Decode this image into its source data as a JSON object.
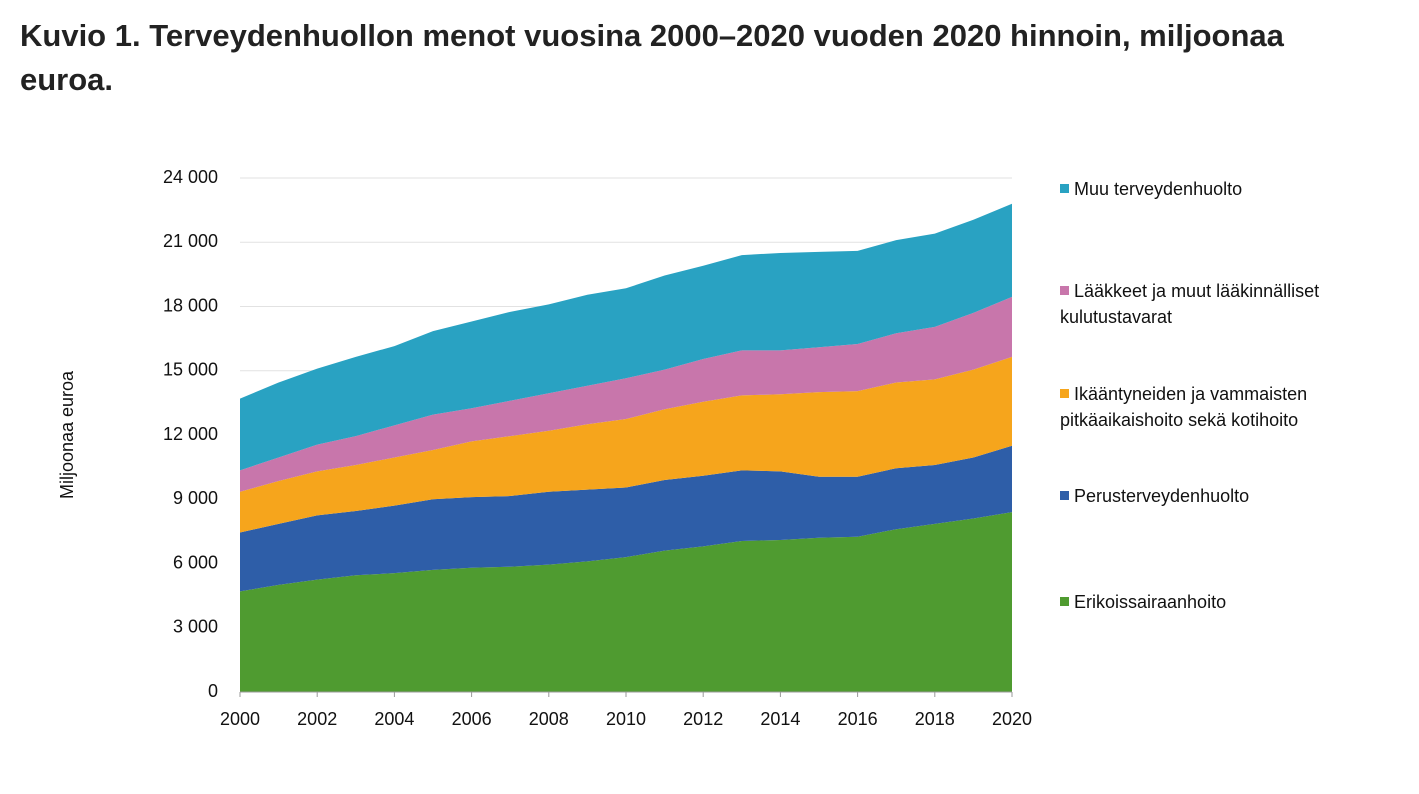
{
  "chart_data": {
    "type": "stacked_area",
    "title": "Kuvio 1. Terveydenhuollon menot vuosina 2000–2020 vuoden 2020 hinnoin, miljoonaa euroa.",
    "y_label": "Miljoonaa euroa",
    "x": [
      2000,
      2001,
      2002,
      2003,
      2004,
      2005,
      2006,
      2007,
      2008,
      2009,
      2010,
      2011,
      2012,
      2013,
      2014,
      2015,
      2016,
      2017,
      2018,
      2019,
      2020
    ],
    "xlim": [
      2000,
      2020
    ],
    "xticks": [
      2000,
      2002,
      2004,
      2006,
      2008,
      2010,
      2012,
      2014,
      2016,
      2018,
      2020
    ],
    "ylim": [
      0,
      24000
    ],
    "yticks": [
      0,
      {
        "value": 3000,
        "label": "3 000"
      },
      {
        "value": 6000,
        "label": "6 000"
      },
      {
        "value": 9000,
        "label": "9 000"
      },
      {
        "value": 12000,
        "label": "12 000"
      },
      {
        "value": 15000,
        "label": "15 000"
      },
      {
        "value": 18000,
        "label": "18 000"
      },
      {
        "value": 21000,
        "label": "21 000"
      },
      {
        "value": 24000,
        "label": "24 000"
      }
    ],
    "grid": true,
    "legend": "right",
    "series": [
      {
        "name": "Erikoissairaanhoito",
        "color": "#4f9b30",
        "values": [
          4700,
          5000,
          5250,
          5450,
          5550,
          5700,
          5800,
          5850,
          5950,
          6100,
          6300,
          6600,
          6800,
          7050,
          7100,
          7200,
          7250,
          7600,
          7850,
          8100,
          8400
        ]
      },
      {
        "name": "Perusterveydenhuolto",
        "color": "#2e5ea8",
        "values": [
          2750,
          2850,
          3000,
          3000,
          3150,
          3300,
          3300,
          3300,
          3400,
          3350,
          3250,
          3300,
          3300,
          3300,
          3200,
          2850,
          2800,
          2850,
          2750,
          2850,
          3100
        ]
      },
      {
        "name": "Ikääntyneiden ja vammaisten pitkäaikaishoito sekä kotihoito",
        "color": "#f6a51c",
        "values": [
          1900,
          2000,
          2050,
          2150,
          2250,
          2300,
          2600,
          2800,
          2850,
          3050,
          3200,
          3300,
          3450,
          3500,
          3600,
          3950,
          4000,
          4000,
          4000,
          4100,
          4150
        ]
      },
      {
        "name": "Lääkkeet ja muut lääkinnälliset kulutustavarat",
        "color": "#c876ab",
        "values": [
          1000,
          1100,
          1250,
          1350,
          1500,
          1650,
          1550,
          1650,
          1750,
          1800,
          1900,
          1850,
          2000,
          2100,
          2050,
          2100,
          2200,
          2300,
          2450,
          2650,
          2800
        ]
      },
      {
        "name": "Muu terveydenhuolto",
        "color": "#29a2c2",
        "values": [
          3350,
          3500,
          3550,
          3700,
          3700,
          3900,
          4050,
          4150,
          4150,
          4250,
          4200,
          4400,
          4350,
          4450,
          4550,
          4450,
          4350,
          4350,
          4350,
          4350,
          4350
        ]
      }
    ]
  }
}
